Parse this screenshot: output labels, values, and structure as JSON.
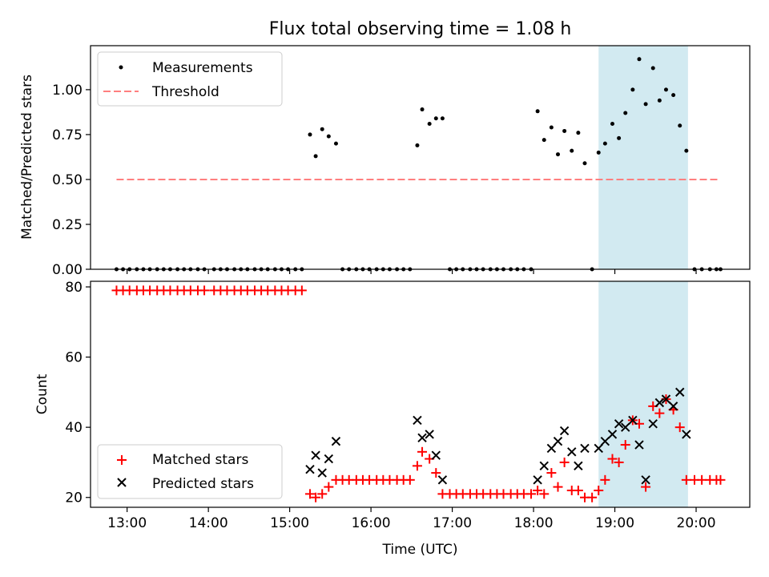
{
  "figure": {
    "title": "Flux total observing time = 1.08 h"
  },
  "colors": {
    "highlight": "#add8e6",
    "threshold": "#ff7f7f",
    "matched": "#ff0000",
    "predicted": "#000000",
    "measurement": "#000000"
  },
  "chart_data": [
    {
      "type": "scatter",
      "panel": "top",
      "ylabel": "Matched/Predicted stars",
      "xlabel": "",
      "xunit": "UTC hours",
      "xlim": [
        12.55,
        20.66
      ],
      "ylim": [
        0,
        1.245
      ],
      "yticks": [
        0.0,
        0.25,
        0.5,
        0.75,
        1.0
      ],
      "ytick_labels": [
        "0.00",
        "0.25",
        "0.50",
        "0.75",
        "1.00"
      ],
      "xticks": [
        13,
        14,
        15,
        16,
        17,
        18,
        19,
        20
      ],
      "grid": false,
      "legend_position": "upper left",
      "highlight_span": [
        18.8,
        19.9
      ],
      "threshold": {
        "name": "Threshold",
        "y": 0.5,
        "x": [
          12.87,
          20.3
        ]
      },
      "series": [
        {
          "name": "Measurements",
          "x": [
            12.87,
            12.95,
            13.03,
            13.12,
            13.2,
            13.28,
            13.37,
            13.45,
            13.53,
            13.62,
            13.7,
            13.78,
            13.87,
            13.95,
            14.07,
            14.15,
            14.23,
            14.32,
            14.4,
            14.48,
            14.57,
            14.65,
            14.73,
            14.82,
            14.9,
            14.98,
            15.07,
            15.15,
            15.25,
            15.32,
            15.4,
            15.48,
            15.57,
            15.65,
            15.73,
            15.82,
            15.9,
            15.98,
            16.07,
            16.15,
            16.23,
            16.32,
            16.4,
            16.48,
            16.57,
            16.63,
            16.72,
            16.8,
            16.88,
            16.97,
            17.05,
            17.13,
            17.22,
            17.3,
            17.38,
            17.47,
            17.55,
            17.63,
            17.72,
            17.8,
            17.88,
            17.97,
            18.05,
            18.13,
            18.22,
            18.3,
            18.38,
            18.47,
            18.55,
            18.63,
            18.72,
            18.8,
            18.88,
            18.97,
            19.05,
            19.13,
            19.22,
            19.3,
            19.38,
            19.47,
            19.55,
            19.63,
            19.72,
            19.8,
            19.88,
            19.98,
            20.07,
            20.17,
            20.25,
            20.3
          ],
          "y": [
            0,
            0,
            0,
            0,
            0,
            0,
            0,
            0,
            0,
            0,
            0,
            0,
            0,
            0,
            0,
            0,
            0,
            0,
            0,
            0,
            0,
            0,
            0,
            0,
            0,
            0,
            0,
            0,
            0.75,
            0.63,
            0.78,
            0.74,
            0.7,
            0,
            0,
            0,
            0,
            0,
            0,
            0,
            0,
            0,
            0,
            0,
            0.69,
            0.89,
            0.81,
            0.84,
            0.84,
            0,
            0,
            0,
            0,
            0,
            0,
            0,
            0,
            0,
            0,
            0,
            0,
            0,
            0.88,
            0.72,
            0.79,
            0.64,
            0.77,
            0.66,
            0.76,
            0.59,
            0,
            0.65,
            0.7,
            0.81,
            0.73,
            0.87,
            1.0,
            1.17,
            0.92,
            1.12,
            0.94,
            1.0,
            0.97,
            0.8,
            0.66,
            0,
            0,
            0,
            0,
            0
          ]
        }
      ]
    },
    {
      "type": "scatter",
      "panel": "bottom",
      "ylabel": "Count",
      "xlabel": "Time (UTC)",
      "xunit": "UTC hours",
      "xlim": [
        12.55,
        20.66
      ],
      "ylim": [
        17.2,
        81.6
      ],
      "yticks": [
        20,
        40,
        60,
        80
      ],
      "ytick_labels": [
        "20",
        "40",
        "60",
        "80"
      ],
      "xticks": [
        13,
        14,
        15,
        16,
        17,
        18,
        19,
        20
      ],
      "xtick_labels": [
        "13:00",
        "14:00",
        "15:00",
        "16:00",
        "17:00",
        "18:00",
        "19:00",
        "20:00"
      ],
      "grid": false,
      "legend_position": "lower left",
      "highlight_span": [
        18.8,
        19.9
      ],
      "series": [
        {
          "name": "Matched stars",
          "marker": "plus",
          "x": [
            12.87,
            12.95,
            13.03,
            13.12,
            13.2,
            13.28,
            13.37,
            13.45,
            13.53,
            13.62,
            13.7,
            13.78,
            13.87,
            13.95,
            14.07,
            14.15,
            14.23,
            14.32,
            14.4,
            14.48,
            14.57,
            14.65,
            14.73,
            14.82,
            14.9,
            14.98,
            15.07,
            15.15,
            15.25,
            15.32,
            15.4,
            15.48,
            15.57,
            15.65,
            15.73,
            15.82,
            15.9,
            15.98,
            16.07,
            16.15,
            16.23,
            16.32,
            16.4,
            16.48,
            16.57,
            16.63,
            16.72,
            16.8,
            16.88,
            16.97,
            17.05,
            17.13,
            17.22,
            17.3,
            17.38,
            17.47,
            17.55,
            17.63,
            17.72,
            17.8,
            17.88,
            17.97,
            18.05,
            18.13,
            18.22,
            18.3,
            18.38,
            18.47,
            18.55,
            18.63,
            18.72,
            18.8,
            18.88,
            18.97,
            19.05,
            19.13,
            19.22,
            19.3,
            19.38,
            19.47,
            19.55,
            19.63,
            19.72,
            19.8,
            19.88,
            19.98,
            20.07,
            20.17,
            20.25,
            20.3
          ],
          "y": [
            79,
            79,
            79,
            79,
            79,
            79,
            79,
            79,
            79,
            79,
            79,
            79,
            79,
            79,
            79,
            79,
            79,
            79,
            79,
            79,
            79,
            79,
            79,
            79,
            79,
            79,
            79,
            79,
            21,
            20,
            21,
            23,
            25,
            25,
            25,
            25,
            25,
            25,
            25,
            25,
            25,
            25,
            25,
            25,
            29,
            33,
            31,
            27,
            21,
            21,
            21,
            21,
            21,
            21,
            21,
            21,
            21,
            21,
            21,
            21,
            21,
            21,
            22,
            21,
            27,
            23,
            30,
            22,
            22,
            20,
            20,
            22,
            25,
            31,
            30,
            35,
            42,
            41,
            23,
            46,
            44,
            48,
            45,
            40,
            25,
            25,
            25,
            25,
            25,
            25
          ]
        },
        {
          "name": "Predicted stars",
          "marker": "x",
          "x": [
            15.25,
            15.32,
            15.4,
            15.48,
            15.57,
            16.57,
            16.63,
            16.72,
            16.8,
            16.88,
            18.05,
            18.13,
            18.22,
            18.3,
            18.38,
            18.47,
            18.55,
            18.63,
            18.8,
            18.88,
            18.97,
            19.05,
            19.13,
            19.22,
            19.3,
            19.38,
            19.47,
            19.55,
            19.63,
            19.72,
            19.8,
            19.88
          ],
          "y": [
            28,
            32,
            27,
            31,
            36,
            42,
            37,
            38,
            32,
            25,
            25,
            29,
            34,
            36,
            39,
            33,
            29,
            34,
            34,
            36,
            38,
            41,
            40,
            42,
            35,
            25,
            41,
            47,
            48,
            46,
            50,
            38
          ]
        }
      ]
    }
  ]
}
